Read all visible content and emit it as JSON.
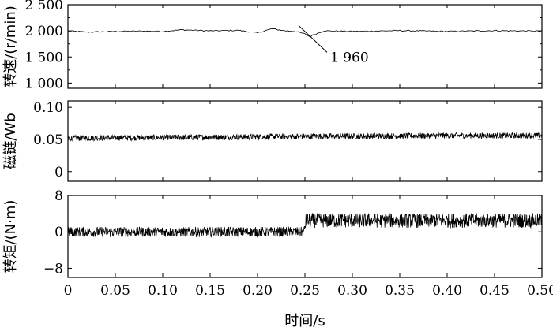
{
  "chart_data": [
    {
      "type": "line",
      "ylabel": "转速/(r/min)",
      "ylim": [
        900,
        2500
      ],
      "yticks": [
        1000,
        1500,
        2000,
        2500
      ],
      "ytick_labels": [
        "1 000",
        "1 500",
        "2 000",
        "2 500"
      ],
      "xlim": [
        0,
        0.5
      ],
      "annotation": {
        "text": "1 960",
        "x": 0.255,
        "y": 1830
      },
      "series": [
        {
          "x": [
            0,
            0.02,
            0.05,
            0.08,
            0.1,
            0.12,
            0.15,
            0.18,
            0.2,
            0.215,
            0.23,
            0.24,
            0.25,
            0.255,
            0.26,
            0.27,
            0.3,
            0.35,
            0.4,
            0.45,
            0.5
          ],
          "y": [
            2000,
            1975,
            1990,
            1995,
            1990,
            2020,
            2000,
            2010,
            1960,
            2040,
            2000,
            1990,
            1940,
            1890,
            1930,
            2000,
            1990,
            2005,
            1990,
            2005,
            1995
          ]
        }
      ]
    },
    {
      "type": "line",
      "ylabel": "磁链/Wb",
      "ylim": [
        -0.015,
        0.11
      ],
      "yticks": [
        0,
        0.05,
        0.1
      ],
      "ytick_labels": [
        "0",
        "0.05",
        "0.10"
      ],
      "xlim": [
        0,
        0.5
      ],
      "series": [
        {
          "x": [
            0,
            0.1,
            0.2,
            0.25,
            0.3,
            0.4,
            0.5
          ],
          "y": [
            0.052,
            0.053,
            0.054,
            0.055,
            0.055,
            0.056,
            0.056
          ]
        }
      ]
    },
    {
      "type": "line",
      "ylabel": "转矩/(N·m)",
      "ylim": [
        -10,
        8
      ],
      "yticks": [
        -8,
        0,
        8
      ],
      "ytick_labels": [
        "−8",
        "0",
        "8"
      ],
      "xlim": [
        0,
        0.5
      ],
      "series": [
        {
          "x": [
            0,
            0.249,
            0.251,
            0.5
          ],
          "y": [
            0,
            0,
            2.5,
            2.5
          ]
        }
      ]
    }
  ],
  "x_axis": {
    "label": "时间/s",
    "ticks": [
      0,
      0.05,
      0.1,
      0.15,
      0.2,
      0.25,
      0.3,
      0.35,
      0.4,
      0.45,
      0.5
    ],
    "tick_labels": [
      "0",
      "0.05",
      "0.10",
      "0.15",
      "0.20",
      "0.25",
      "0.30",
      "0.35",
      "0.40",
      "0.45",
      "0.50"
    ]
  }
}
